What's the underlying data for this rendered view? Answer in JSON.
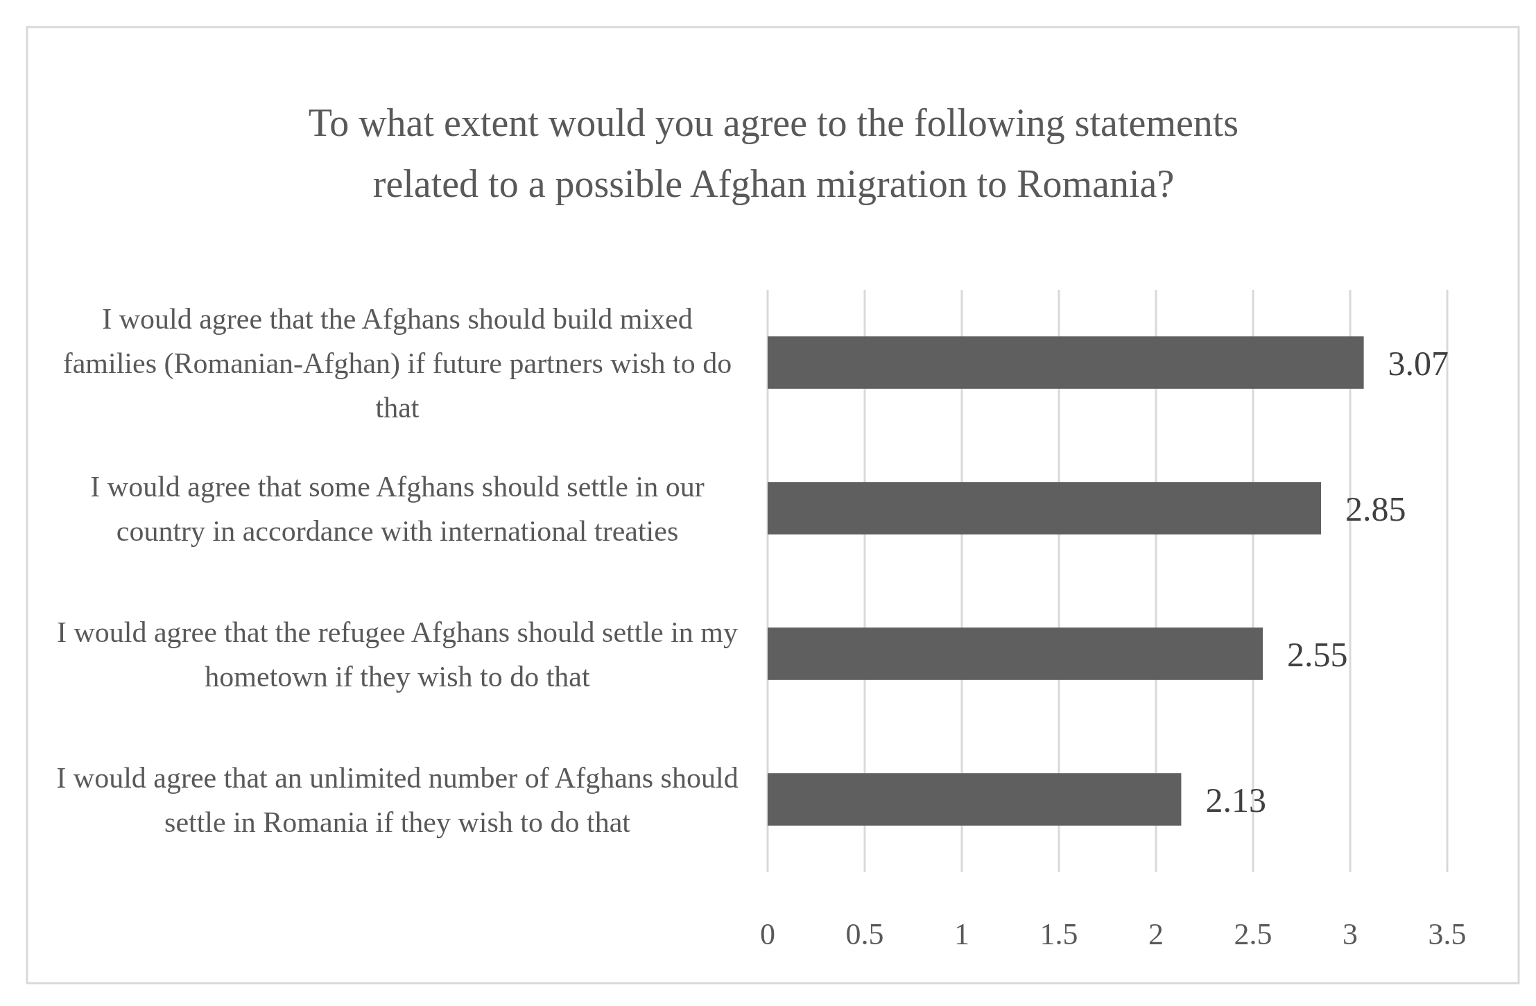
{
  "chart_data": {
    "type": "bar",
    "orientation": "horizontal",
    "title": "To what extent would you agree to the following statements related to a possible Afghan migration to Romania?",
    "categories": [
      "I would agree that the Afghans should build mixed families (Romanian-Afghan) if future partners wish to do that",
      "I would agree that some Afghans should settle in our country in accordance with international treaties",
      "I would agree that the refugee Afghans should settle in my hometown if they wish to do that",
      "I would agree that an unlimited number of Afghans should settle in Romania if they wish to do that"
    ],
    "values": [
      3.07,
      2.85,
      2.55,
      2.13
    ],
    "color": "#5f5f5f",
    "data_labels": true,
    "xlim": [
      0,
      3.5
    ],
    "xticks": [
      0,
      0.5,
      1,
      1.5,
      2,
      2.5,
      3,
      3.5
    ],
    "grid": "x"
  }
}
